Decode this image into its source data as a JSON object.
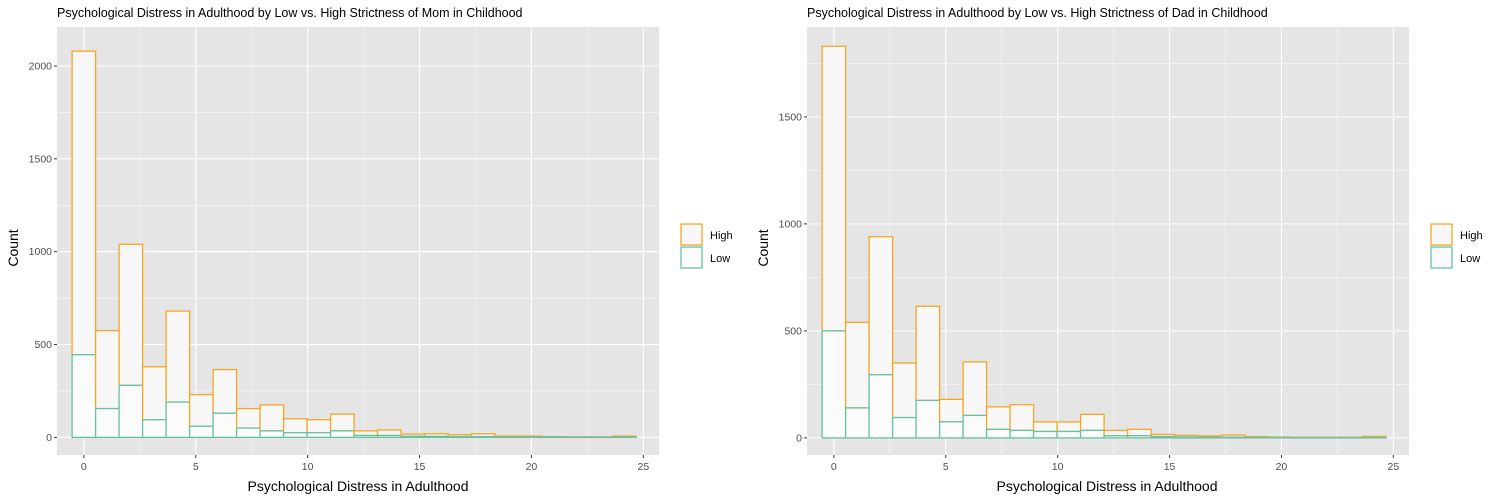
{
  "colors": {
    "panel_bg": "#e5e5e5",
    "grid_major": "#ffffff",
    "high_outline": "#f5a623",
    "low_outline": "#66c2a5",
    "high_fill": "#f7f7f7",
    "low_fill": "#fbfbfb",
    "text": "#000000",
    "tick_text": "#4d4d4d"
  },
  "chart_data": [
    {
      "type": "bar",
      "subtype": "stacked-histogram",
      "title": "Psychological Distress in Adulthood by Low vs. High Strictness of Mom in Childhood",
      "xlabel": "Psychological Distress in Adulthood",
      "ylabel": "Count",
      "xlim": [
        -1.2,
        25.7
      ],
      "ylim": [
        -95,
        2210
      ],
      "x_ticks": [
        0,
        5,
        10,
        15,
        20,
        25
      ],
      "y_ticks": [
        0,
        500,
        1000,
        1500,
        2000
      ],
      "grid": true,
      "legend_position": "right",
      "legend": [
        "High",
        "Low"
      ],
      "x": [
        0,
        1.05,
        2.1,
        3.15,
        4.2,
        5.25,
        6.3,
        7.35,
        8.4,
        9.45,
        10.5,
        11.55,
        12.6,
        13.65,
        14.7,
        15.75,
        16.8,
        17.85,
        18.9,
        19.95,
        21.0,
        22.05,
        23.1,
        24.15
      ],
      "series": [
        {
          "name": "High",
          "values": [
            1635,
            420,
            760,
            285,
            490,
            170,
            235,
            105,
            140,
            75,
            70,
            90,
            25,
            30,
            12,
            15,
            10,
            15,
            5,
            5,
            2,
            2,
            2,
            5
          ]
        },
        {
          "name": "Low",
          "values": [
            445,
            155,
            280,
            95,
            190,
            60,
            130,
            50,
            35,
            25,
            25,
            35,
            10,
            10,
            6,
            5,
            4,
            4,
            2,
            2,
            2,
            1,
            1,
            2
          ]
        }
      ]
    },
    {
      "type": "bar",
      "subtype": "stacked-histogram",
      "title": "Psychological Distress in Adulthood by Low vs. High Strictness of Dad in Childhood",
      "xlabel": "Psychological Distress in Adulthood",
      "ylabel": "Count",
      "xlim": [
        -1.2,
        25.7
      ],
      "ylim": [
        -80,
        1920
      ],
      "x_ticks": [
        0,
        5,
        10,
        15,
        20,
        25
      ],
      "y_ticks": [
        0,
        500,
        1000,
        1500
      ],
      "grid": true,
      "legend_position": "right",
      "legend": [
        "High",
        "Low"
      ],
      "x": [
        0,
        1.05,
        2.1,
        3.15,
        4.2,
        5.25,
        6.3,
        7.35,
        8.4,
        9.45,
        10.5,
        11.55,
        12.6,
        13.65,
        14.7,
        15.75,
        16.8,
        17.85,
        18.9,
        19.95,
        21.0,
        22.05,
        23.1,
        24.15
      ],
      "series": [
        {
          "name": "High",
          "values": [
            1330,
            400,
            645,
            255,
            440,
            105,
            250,
            105,
            120,
            45,
            45,
            75,
            25,
            30,
            10,
            8,
            6,
            10,
            4,
            2,
            2,
            2,
            2,
            5
          ]
        },
        {
          "name": "Low",
          "values": [
            500,
            140,
            295,
            95,
            175,
            75,
            105,
            40,
            35,
            30,
            30,
            35,
            10,
            10,
            6,
            4,
            3,
            3,
            2,
            2,
            1,
            1,
            1,
            2
          ]
        }
      ]
    }
  ]
}
